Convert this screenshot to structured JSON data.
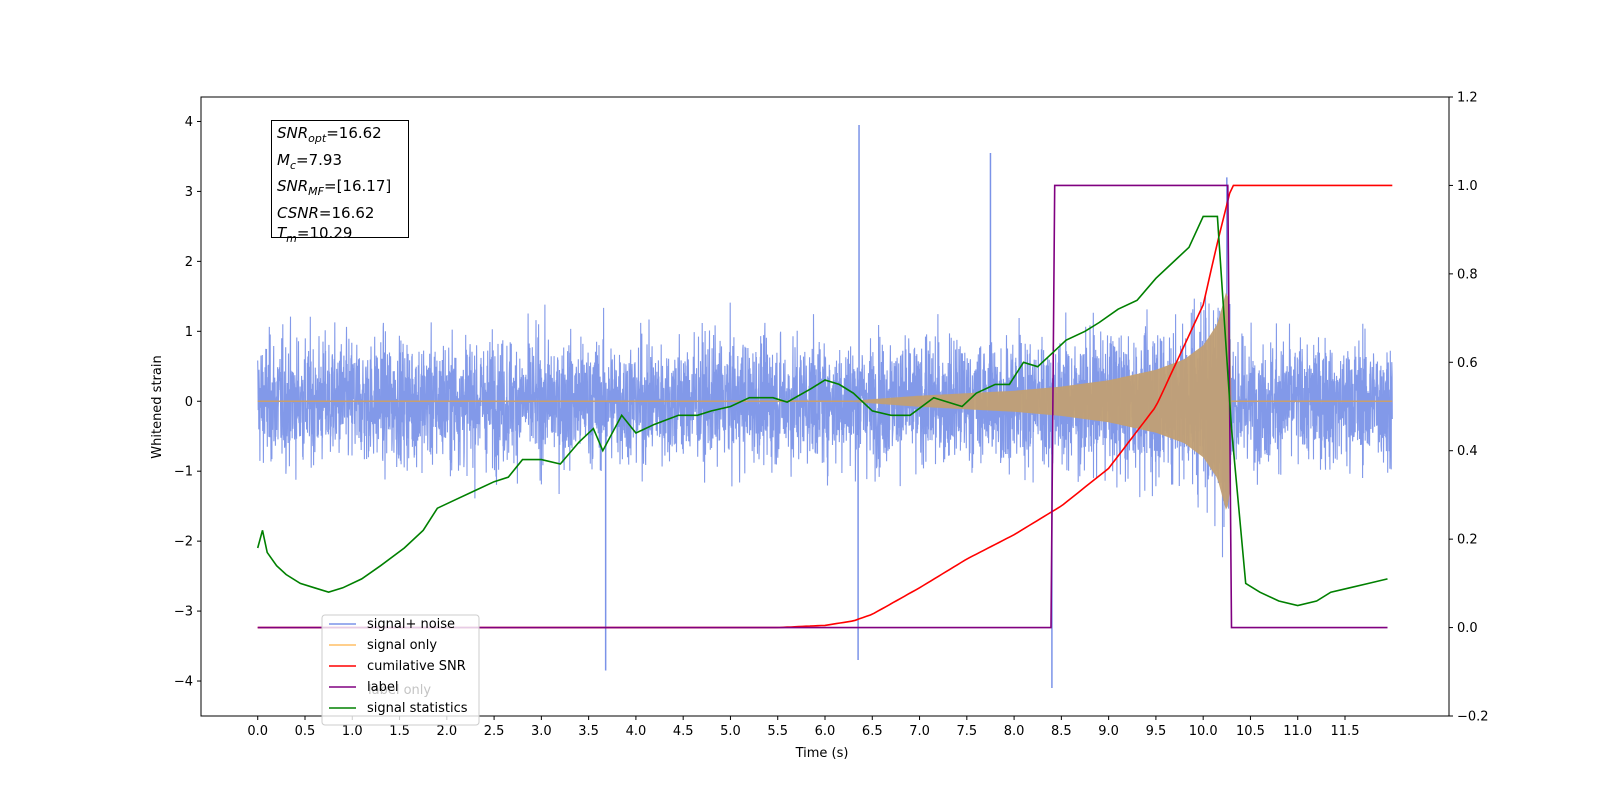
{
  "chart_data": {
    "type": "line",
    "xlabel": "Time (s)",
    "ylabel": "Whitened strain",
    "xlim": [
      -0.6,
      12.6
    ],
    "ylim": [
      -4.5,
      4.35
    ],
    "y2lim": [
      -0.2,
      1.2
    ],
    "x_ticks": [
      "0.0",
      "0.5",
      "1.0",
      "1.5",
      "2.0",
      "2.5",
      "3.0",
      "3.5",
      "4.0",
      "4.5",
      "5.0",
      "5.5",
      "6.0",
      "6.5",
      "7.0",
      "7.5",
      "8.0",
      "8.5",
      "9.0",
      "9.5",
      "10.0",
      "10.5",
      "11.0",
      "11.5"
    ],
    "y_ticks": [
      "4",
      "3",
      "2",
      "1",
      "0",
      "−1",
      "−2",
      "−3",
      "−4"
    ],
    "y2_ticks": [
      "1.2",
      "1.0",
      "0.8",
      "0.6",
      "0.4",
      "0.2",
      "0.0",
      "−0.2"
    ],
    "annotations": {
      "snr_opt": {
        "sym": "SNR",
        "sub": "opt",
        "value": "=16.62"
      },
      "mc": {
        "sym": "M",
        "sub": "c",
        "value": "=7.93"
      },
      "snr_mf": {
        "sym": "SNR",
        "sub": "MF",
        "value": "=[16.17]"
      },
      "csnr": {
        "sym": "CSNR",
        "sub": "",
        "value": "=16.62"
      },
      "tm": {
        "sym": "T",
        "sub": "m",
        "value": "=10.29"
      }
    },
    "legend": {
      "placement": "lower-left",
      "entries": [
        {
          "label": "signal+ noise",
          "color": "#7b93e8"
        },
        {
          "label": "signal only",
          "color": "#ffbf66"
        },
        {
          "label": "cumilative SNR",
          "color": "#ff0000"
        },
        {
          "label": "label",
          "color": "#800080"
        },
        {
          "label": "signal statistics",
          "color": "#008000"
        }
      ],
      "overlapped_text": [
        "label only"
      ]
    },
    "series": [
      {
        "name": "signal+ noise",
        "axis": "left",
        "color": "#7b93e8",
        "duration": [
          0.0,
          12.0
        ],
        "amplitude_band": [
          -1.8,
          1.9
        ],
        "peaks": [
          {
            "x": 6.36,
            "y": 3.95
          },
          {
            "x": 7.75,
            "y": 3.55
          },
          {
            "x": 10.25,
            "y": 3.2
          },
          {
            "x": 8.4,
            "y": -4.1
          },
          {
            "x": 3.68,
            "y": -3.85
          },
          {
            "x": 6.35,
            "y": -3.7
          }
        ]
      },
      {
        "name": "signal only",
        "axis": "left",
        "color": "#c8a070",
        "chirp_start": 6.3,
        "merger": 10.28,
        "envelope_points": [
          [
            6.3,
            0.01
          ],
          [
            7.0,
            0.08
          ],
          [
            8.0,
            0.15
          ],
          [
            8.5,
            0.21
          ],
          [
            9.0,
            0.3
          ],
          [
            9.5,
            0.45
          ],
          [
            9.8,
            0.6
          ],
          [
            10.0,
            0.8
          ],
          [
            10.15,
            1.1
          ],
          [
            10.25,
            1.6
          ],
          [
            10.28,
            1.3
          ],
          [
            10.3,
            0.0
          ]
        ]
      },
      {
        "name": "cumilative SNR",
        "axis": "right",
        "color": "#ff0000",
        "x": [
          0.0,
          5.5,
          6.0,
          6.3,
          6.5,
          7.0,
          7.5,
          8.0,
          8.5,
          9.0,
          9.5,
          10.0,
          10.15,
          10.3,
          12.0
        ],
        "y": [
          0.0,
          0.0,
          0.005,
          0.015,
          0.03,
          0.09,
          0.155,
          0.21,
          0.275,
          0.36,
          0.5,
          0.73,
          0.87,
          1.0,
          1.0
        ]
      },
      {
        "name": "label",
        "axis": "right",
        "color": "#800080",
        "x": [
          0.0,
          8.39,
          8.43,
          10.26,
          10.3,
          11.95
        ],
        "y": [
          0.0,
          0.0,
          1.0,
          1.0,
          0.0,
          0.0
        ]
      },
      {
        "name": "signal statistics",
        "axis": "right",
        "color": "#008000",
        "x": [
          0.0,
          0.05,
          0.1,
          0.2,
          0.3,
          0.45,
          0.6,
          0.75,
          0.9,
          1.1,
          1.3,
          1.55,
          1.75,
          1.9,
          2.1,
          2.3,
          2.5,
          2.65,
          2.8,
          3.0,
          3.2,
          3.4,
          3.55,
          3.65,
          3.85,
          4.0,
          4.2,
          4.45,
          4.65,
          4.8,
          5.0,
          5.2,
          5.45,
          5.6,
          5.85,
          6.0,
          6.15,
          6.3,
          6.5,
          6.7,
          6.9,
          7.15,
          7.45,
          7.6,
          7.8,
          7.95,
          8.1,
          8.25,
          8.4,
          8.55,
          8.75,
          8.9,
          9.1,
          9.3,
          9.5,
          9.65,
          9.85,
          10.0,
          10.15,
          10.3,
          10.45,
          10.6,
          10.8,
          11.0,
          11.2,
          11.35,
          11.55,
          11.75,
          11.95
        ],
        "y": [
          0.18,
          0.22,
          0.17,
          0.14,
          0.12,
          0.1,
          0.09,
          0.08,
          0.09,
          0.11,
          0.14,
          0.18,
          0.22,
          0.27,
          0.29,
          0.31,
          0.33,
          0.34,
          0.38,
          0.38,
          0.37,
          0.42,
          0.45,
          0.4,
          0.48,
          0.44,
          0.46,
          0.48,
          0.48,
          0.49,
          0.5,
          0.52,
          0.52,
          0.51,
          0.54,
          0.56,
          0.55,
          0.53,
          0.49,
          0.48,
          0.48,
          0.52,
          0.5,
          0.53,
          0.55,
          0.55,
          0.6,
          0.59,
          0.62,
          0.65,
          0.67,
          0.69,
          0.72,
          0.74,
          0.79,
          0.82,
          0.86,
          0.93,
          0.93,
          0.45,
          0.1,
          0.08,
          0.06,
          0.05,
          0.06,
          0.08,
          0.09,
          0.1,
          0.11
        ]
      }
    ]
  }
}
